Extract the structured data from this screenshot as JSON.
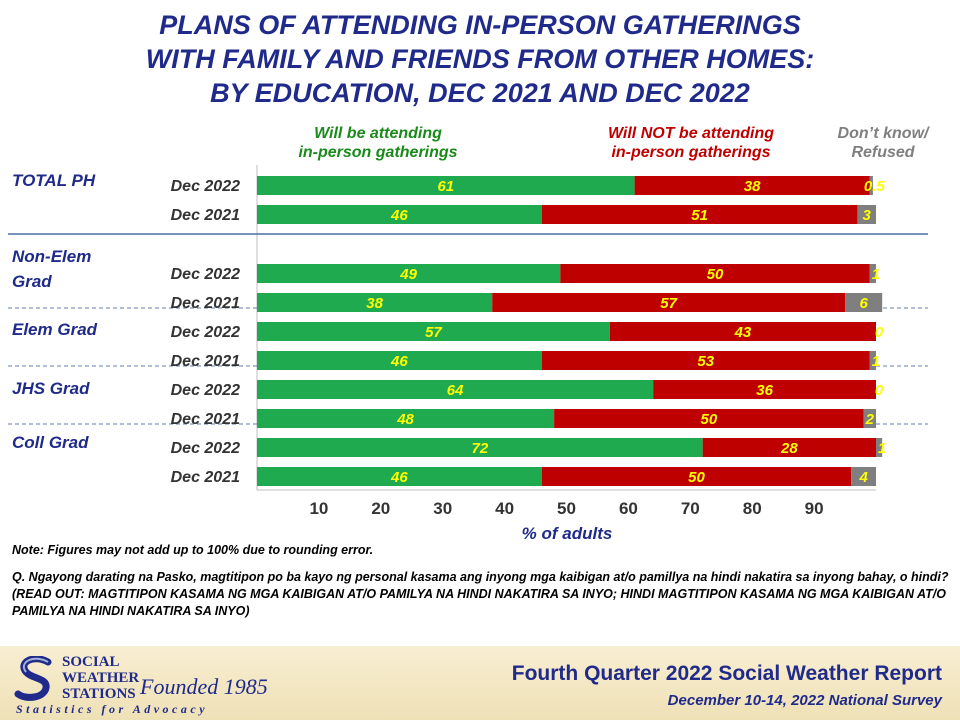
{
  "title": {
    "line1": "PLANS OF ATTENDING IN-PERSON GATHERINGS",
    "line2": "WITH FAMILY AND FRIENDS FROM OTHER HOMES:",
    "line3": "BY EDUCATION, DEC 2021 AND DEC 2022"
  },
  "legend": {
    "attending_l1": "Will be attending",
    "attending_l2": "in-person gatherings",
    "not_attending_l1": "Will NOT be attending",
    "not_attending_l2": "in-person gatherings",
    "dk_l1": "Don’t know/",
    "dk_l2": "Refused"
  },
  "colors": {
    "attending": "#1faa4f",
    "not_attending": "#bf0000",
    "dk": "#7f7f7f",
    "label": "#ffff00",
    "title": "#1f2a8a",
    "attending_text": "#1a8a1a",
    "not_attending_text": "#c00000",
    "dk_text": "#7f7f7f"
  },
  "chart_data": {
    "type": "bar",
    "orientation": "horizontal",
    "stacked": true,
    "xlabel": "% of adults",
    "xlim": [
      0,
      100
    ],
    "xticks": [
      10,
      20,
      30,
      40,
      50,
      60,
      70,
      80,
      90
    ],
    "series": [
      {
        "name": "Will be attending in-person gatherings",
        "color": "#1faa4f"
      },
      {
        "name": "Will NOT be attending in-person gatherings",
        "color": "#bf0000"
      },
      {
        "name": "Don’t know/ Refused",
        "color": "#7f7f7f"
      }
    ],
    "groups": [
      {
        "label": "TOTAL PH",
        "rows": [
          {
            "period": "Dec 2022",
            "values": [
              61,
              38,
              0.5
            ],
            "labels": [
              "61",
              "38",
              "0.5"
            ]
          },
          {
            "period": "Dec 2021",
            "values": [
              46,
              51,
              3
            ],
            "labels": [
              "46",
              "51",
              "3"
            ]
          }
        ]
      },
      {
        "label": "Non-Elem Grad",
        "rows": [
          {
            "period": "Dec 2022",
            "values": [
              49,
              50,
              1
            ],
            "labels": [
              "49",
              "50",
              "1"
            ]
          },
          {
            "period": "Dec 2021",
            "values": [
              38,
              57,
              6
            ],
            "labels": [
              "38",
              "57",
              "6"
            ]
          }
        ]
      },
      {
        "label": "Elem Grad",
        "rows": [
          {
            "period": "Dec 2022",
            "values": [
              57,
              43,
              0
            ],
            "labels": [
              "57",
              "43",
              "0"
            ]
          },
          {
            "period": "Dec 2021",
            "values": [
              46,
              53,
              1
            ],
            "labels": [
              "46",
              "53",
              "1"
            ]
          }
        ]
      },
      {
        "label": "JHS Grad",
        "rows": [
          {
            "period": "Dec 2022",
            "values": [
              64,
              36,
              0
            ],
            "labels": [
              "64",
              "36",
              "0"
            ]
          },
          {
            "period": "Dec 2021",
            "values": [
              48,
              50,
              2
            ],
            "labels": [
              "48",
              "50",
              "2"
            ]
          }
        ]
      },
      {
        "label": "Coll Grad",
        "rows": [
          {
            "period": "Dec 2022",
            "values": [
              72,
              28,
              1
            ],
            "labels": [
              "72",
              "28",
              "1"
            ]
          },
          {
            "period": "Dec 2021",
            "values": [
              46,
              50,
              4
            ],
            "labels": [
              "46",
              "50",
              "4"
            ]
          }
        ]
      }
    ]
  },
  "note": "Note: Figures may not add up to 100% due to rounding error.",
  "question": "Q. Ngayong darating na Pasko, magtitipon po ba kayo ng personal kasama ang inyong mga kaibigan at/o pamillya na hindi nakatira sa inyong bahay, o hindi? (READ OUT: MAGTITIPON KASAMA NG MGA KAIBIGAN AT/O PAMILYA NA HINDI NAKATIRA SA INYO; HINDI MAGTITIPON KASAMA NG MGA KAIBIGAN AT/O PAMILYA NA HINDI NAKATIRA SA INYO)",
  "footer": {
    "org_l1": "SOCIAL",
    "org_l2": "WEATHER",
    "org_l3": "STATIONS",
    "founded": "Founded 1985",
    "tagline": "Statistics for Advocacy",
    "report": "Fourth Quarter 2022 Social Weather Report",
    "survey": "December 10-14, 2022 National Survey"
  }
}
